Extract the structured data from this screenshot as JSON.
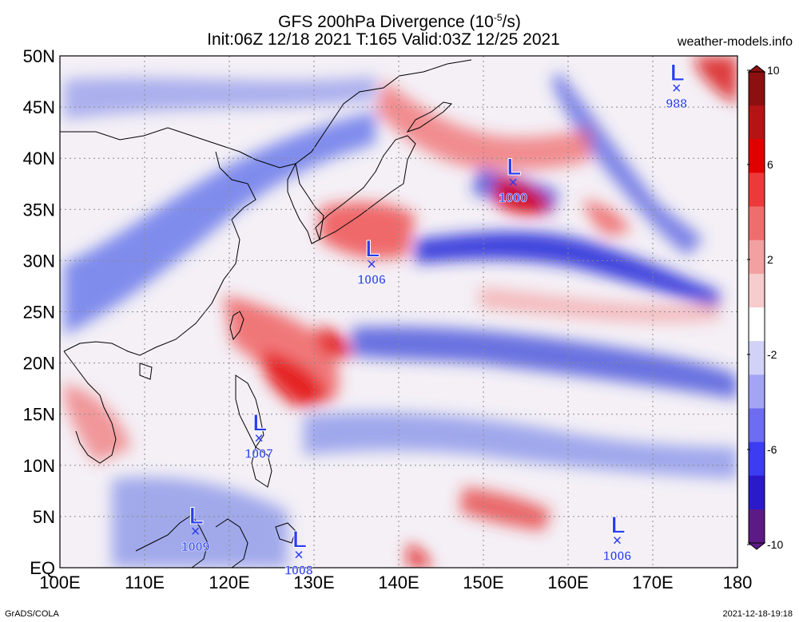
{
  "title": {
    "line1_prefix": "GFS 200hPa Divergence (10",
    "line1_exp": "-5",
    "line1_suffix": "/s)",
    "line2": "Init:06Z 12/18 2021 T:165 Valid:03Z 12/25 2021"
  },
  "site": "weather-models.info",
  "lat_labels": [
    "50N",
    "45N",
    "40N",
    "35N",
    "30N",
    "25N",
    "20N",
    "15N",
    "10N",
    "5N",
    "EQ"
  ],
  "lon_labels": [
    "100E",
    "110E",
    "120E",
    "130E",
    "140E",
    "150E",
    "160E",
    "170E",
    "180"
  ],
  "colorbar": {
    "labels": [
      "10",
      "6",
      "2",
      "-2",
      "-6",
      "-10"
    ],
    "colors": [
      "#5b1a86",
      "#2a1ac8",
      "#3c3cf0",
      "#6d6df2",
      "#a4a4f4",
      "#d2d2f8",
      "#ffffff",
      "#f6cccc",
      "#f2a0a0",
      "#ee6e6e",
      "#ec3a3a",
      "#e00000",
      "#b41414",
      "#8c1010"
    ]
  },
  "lows": [
    {
      "label": "L",
      "pressure": "988",
      "lon": 172.8,
      "lat": 46.8
    },
    {
      "label": "L",
      "pressure": "1000",
      "lon": 153.5,
      "lat": 37.6
    },
    {
      "label": "L",
      "pressure": "1006",
      "lon": 136.8,
      "lat": 29.6
    },
    {
      "label": "L",
      "pressure": "1007",
      "lon": 123.5,
      "lat": 12.6
    },
    {
      "label": "L",
      "pressure": "1009",
      "lon": 116.0,
      "lat": 3.5
    },
    {
      "label": "L",
      "pressure": "1008",
      "lon": 128.2,
      "lat": 1.2
    },
    {
      "label": "L",
      "pressure": "1006",
      "lon": 165.8,
      "lat": 2.6
    }
  ],
  "footer_left": "GrADS/COLA",
  "footer_right": "2021-12-18-19:18"
}
